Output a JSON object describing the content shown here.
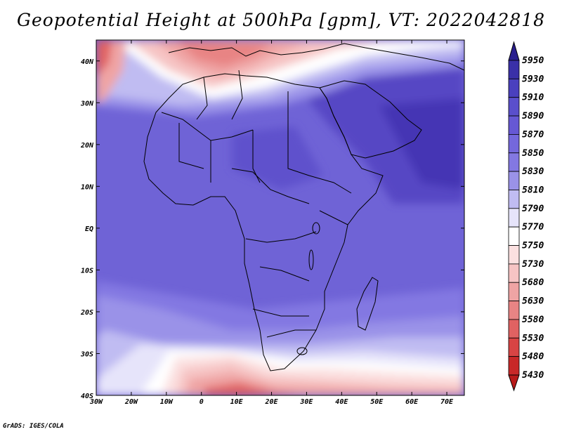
{
  "title": "Geopotential Height at 500hPa [gpm], VT: 2022042818",
  "credit": "GrADS: IGES/COLA",
  "map": {
    "lon_ticks": [
      "30W",
      "20W",
      "10W",
      "0",
      "10E",
      "20E",
      "30E",
      "40E",
      "50E",
      "60E",
      "70E"
    ],
    "lat_ticks": [
      "40N",
      "30N",
      "20N",
      "10N",
      "EQ",
      "10S",
      "20S",
      "30S",
      "40S"
    ],
    "region": "Africa",
    "lon_range_deg": [
      -30,
      75
    ],
    "lat_range_deg": [
      -40,
      45
    ]
  },
  "colorbar": {
    "labels": [
      "5950",
      "5930",
      "5910",
      "5890",
      "5870",
      "5850",
      "5830",
      "5810",
      "5790",
      "5770",
      "5750",
      "5730",
      "5680",
      "5630",
      "5580",
      "5530",
      "5480",
      "5430"
    ],
    "colors": [
      "#2a1f8f",
      "#3a30a8",
      "#4a40be",
      "#5a4fcc",
      "#6658d4",
      "#7468dc",
      "#8378e2",
      "#9a92e8",
      "#c0bcf2",
      "#e6e4fa",
      "#ffffff",
      "#fbe0e0",
      "#f6c4c4",
      "#efa4a4",
      "#e88484",
      "#e06262",
      "#d84444",
      "#c82828",
      "#b81a1a"
    ]
  }
}
